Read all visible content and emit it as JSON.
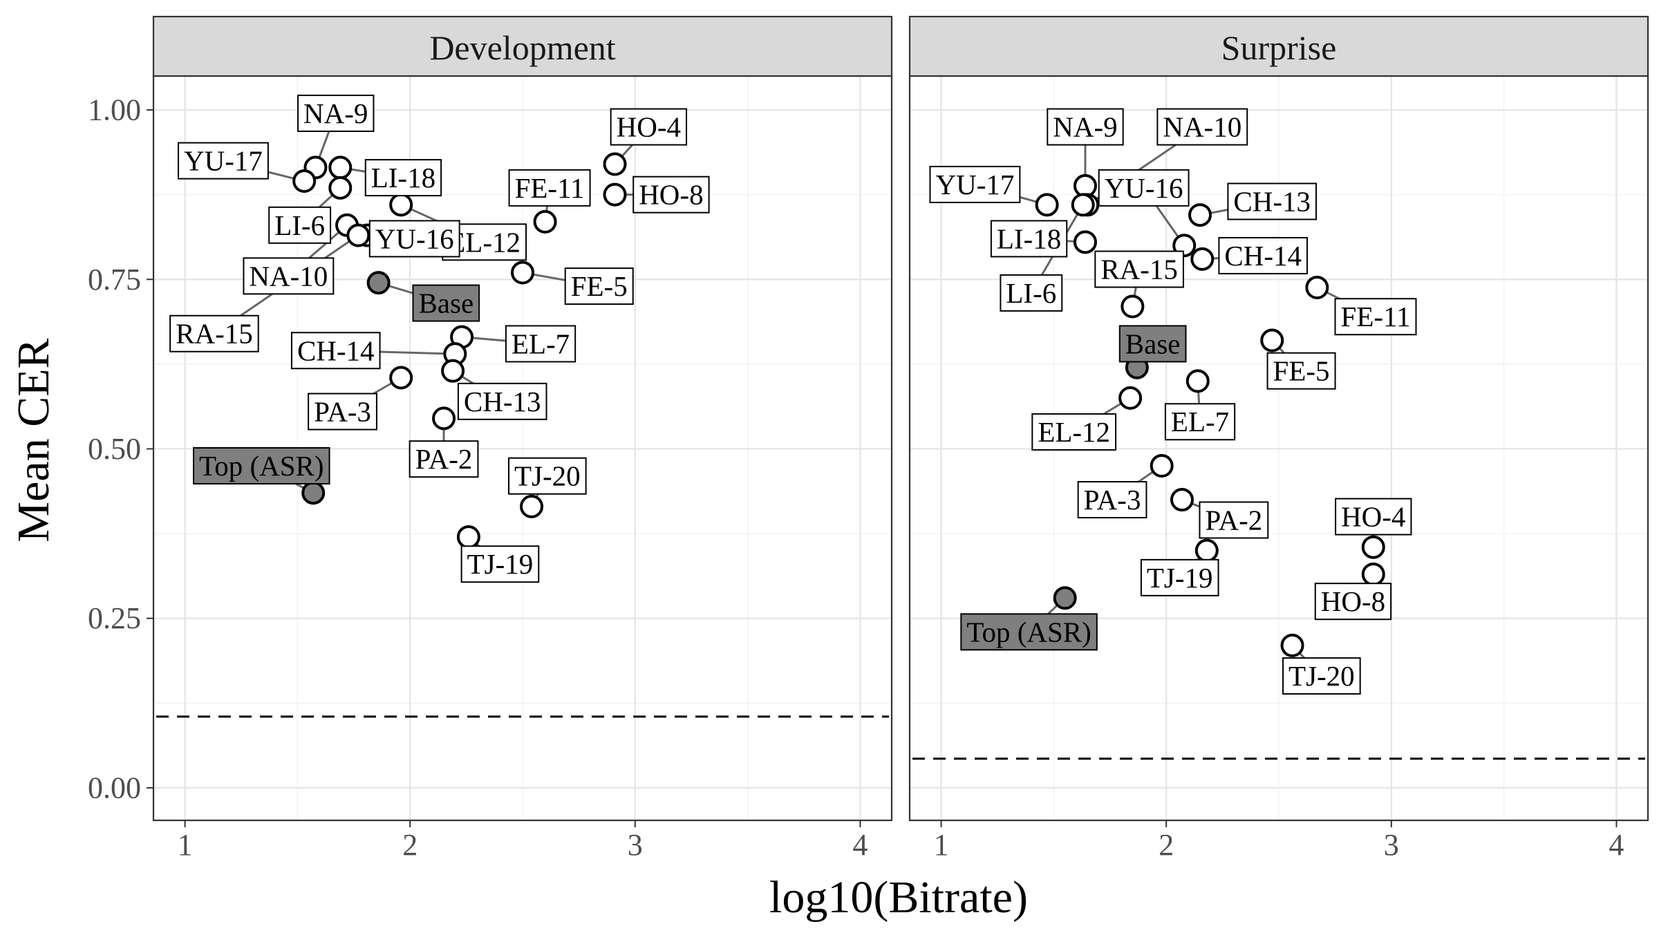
{
  "chart_data": {
    "type": "scatter",
    "xlabel": "log10(Bitrate)",
    "ylabel": "Mean CER",
    "xlim": [
      0.86,
      4.14
    ],
    "ylim": [
      -0.048,
      1.05
    ],
    "x_ticks": [
      1,
      2,
      3,
      4
    ],
    "y_ticks": [
      0.0,
      0.25,
      0.5,
      0.75,
      1.0
    ],
    "y_tick_labels": [
      "0.00",
      "0.25",
      "0.50",
      "0.75",
      "1.00"
    ],
    "panels": [
      {
        "title": "Development",
        "reference_line_y": 0.105,
        "points": [
          {
            "label": "NA-9",
            "x": 1.58,
            "y": 0.915,
            "lx": 1.67,
            "ly": 0.995,
            "highlight": false
          },
          {
            "label": "YU-17",
            "x": 1.53,
            "y": 0.895,
            "lx": 1.17,
            "ly": 0.925,
            "highlight": false
          },
          {
            "label": "LI-18",
            "x": 1.69,
            "y": 0.915,
            "lx": 1.97,
            "ly": 0.9,
            "highlight": false
          },
          {
            "label": "LI-6",
            "x": 1.69,
            "y": 0.885,
            "lx": 1.51,
            "ly": 0.83,
            "highlight": false
          },
          {
            "label": "HO-4",
            "x": 2.91,
            "y": 0.92,
            "lx": 3.06,
            "ly": 0.975,
            "highlight": false
          },
          {
            "label": "HO-8",
            "x": 2.91,
            "y": 0.875,
            "lx": 3.16,
            "ly": 0.875,
            "highlight": false
          },
          {
            "label": "FE-11",
            "x": 2.6,
            "y": 0.835,
            "lx": 2.62,
            "ly": 0.885,
            "highlight": false
          },
          {
            "label": "EL-12",
            "x": 1.96,
            "y": 0.86,
            "lx": 2.33,
            "ly": 0.805,
            "highlight": false
          },
          {
            "label": "YU-16",
            "x": 1.81,
            "y": 0.815,
            "lx": 2.02,
            "ly": 0.81,
            "highlight": false
          },
          {
            "label": "NA-10",
            "x": 1.72,
            "y": 0.83,
            "lx": 1.46,
            "ly": 0.755,
            "highlight": false
          },
          {
            "label": "RA-15",
            "x": 1.77,
            "y": 0.815,
            "lx": 1.13,
            "ly": 0.67,
            "highlight": false
          },
          {
            "label": "Base",
            "x": 1.86,
            "y": 0.745,
            "lx": 2.16,
            "ly": 0.715,
            "highlight": true
          },
          {
            "label": "FE-5",
            "x": 2.5,
            "y": 0.76,
            "lx": 2.84,
            "ly": 0.74,
            "highlight": false
          },
          {
            "label": "EL-7",
            "x": 2.23,
            "y": 0.665,
            "lx": 2.58,
            "ly": 0.655,
            "highlight": false
          },
          {
            "label": "CH-14",
            "x": 2.2,
            "y": 0.64,
            "lx": 1.67,
            "ly": 0.645,
            "highlight": false
          },
          {
            "label": "CH-13",
            "x": 2.19,
            "y": 0.615,
            "lx": 2.41,
            "ly": 0.57,
            "highlight": false
          },
          {
            "label": "PA-3",
            "x": 1.96,
            "y": 0.605,
            "lx": 1.7,
            "ly": 0.555,
            "highlight": false
          },
          {
            "label": "PA-2",
            "x": 2.15,
            "y": 0.545,
            "lx": 2.15,
            "ly": 0.485,
            "highlight": false
          },
          {
            "label": "Top (ASR)",
            "x": 1.57,
            "y": 0.435,
            "lx": 1.34,
            "ly": 0.475,
            "highlight": true
          },
          {
            "label": "TJ-20",
            "x": 2.54,
            "y": 0.415,
            "lx": 2.61,
            "ly": 0.46,
            "highlight": false
          },
          {
            "label": "TJ-19",
            "x": 2.26,
            "y": 0.37,
            "lx": 2.4,
            "ly": 0.33,
            "highlight": false
          }
        ]
      },
      {
        "title": "Surprise",
        "reference_line_y": 0.043,
        "points": [
          {
            "label": "NA-9",
            "x": 1.64,
            "y": 0.888,
            "lx": 1.64,
            "ly": 0.975,
            "highlight": false
          },
          {
            "label": "NA-10",
            "x": 1.65,
            "y": 0.86,
            "lx": 2.16,
            "ly": 0.975,
            "highlight": false
          },
          {
            "label": "YU-17",
            "x": 1.47,
            "y": 0.86,
            "lx": 1.15,
            "ly": 0.89,
            "highlight": false
          },
          {
            "label": "LI-18",
            "x": 1.64,
            "y": 0.805,
            "lx": 1.39,
            "ly": 0.81,
            "highlight": false
          },
          {
            "label": "YU-16",
            "x": 2.08,
            "y": 0.8,
            "lx": 1.9,
            "ly": 0.885,
            "highlight": false
          },
          {
            "label": "CH-13",
            "x": 2.15,
            "y": 0.845,
            "lx": 2.47,
            "ly": 0.865,
            "highlight": false
          },
          {
            "label": "CH-14",
            "x": 2.16,
            "y": 0.78,
            "lx": 2.43,
            "ly": 0.785,
            "highlight": false
          },
          {
            "label": "LI-6",
            "x": 1.63,
            "y": 0.86,
            "lx": 1.4,
            "ly": 0.73,
            "highlight": false
          },
          {
            "label": "RA-15",
            "x": 1.85,
            "y": 0.71,
            "lx": 1.88,
            "ly": 0.765,
            "highlight": false
          },
          {
            "label": "FE-11",
            "x": 2.67,
            "y": 0.738,
            "lx": 2.93,
            "ly": 0.695,
            "highlight": false
          },
          {
            "label": "Base",
            "x": 1.87,
            "y": 0.62,
            "lx": 1.94,
            "ly": 0.655,
            "highlight": true
          },
          {
            "label": "FE-5",
            "x": 2.47,
            "y": 0.66,
            "lx": 2.6,
            "ly": 0.615,
            "highlight": false
          },
          {
            "label": "EL-7",
            "x": 2.14,
            "y": 0.6,
            "lx": 2.15,
            "ly": 0.54,
            "highlight": false
          },
          {
            "label": "EL-12",
            "x": 1.84,
            "y": 0.575,
            "lx": 1.59,
            "ly": 0.525,
            "highlight": false
          },
          {
            "label": "PA-3",
            "x": 1.98,
            "y": 0.475,
            "lx": 1.76,
            "ly": 0.425,
            "highlight": false
          },
          {
            "label": "PA-2",
            "x": 2.07,
            "y": 0.425,
            "lx": 2.3,
            "ly": 0.395,
            "highlight": false
          },
          {
            "label": "HO-4",
            "x": 2.92,
            "y": 0.355,
            "lx": 2.92,
            "ly": 0.4,
            "highlight": false
          },
          {
            "label": "TJ-19",
            "x": 2.18,
            "y": 0.35,
            "lx": 2.06,
            "ly": 0.31,
            "highlight": false
          },
          {
            "label": "HO-8",
            "x": 2.92,
            "y": 0.315,
            "lx": 2.83,
            "ly": 0.275,
            "highlight": false
          },
          {
            "label": "Top (ASR)",
            "x": 1.55,
            "y": 0.28,
            "lx": 1.39,
            "ly": 0.23,
            "highlight": true
          },
          {
            "label": "TJ-20",
            "x": 2.56,
            "y": 0.21,
            "lx": 2.69,
            "ly": 0.165,
            "highlight": false
          }
        ]
      }
    ]
  }
}
